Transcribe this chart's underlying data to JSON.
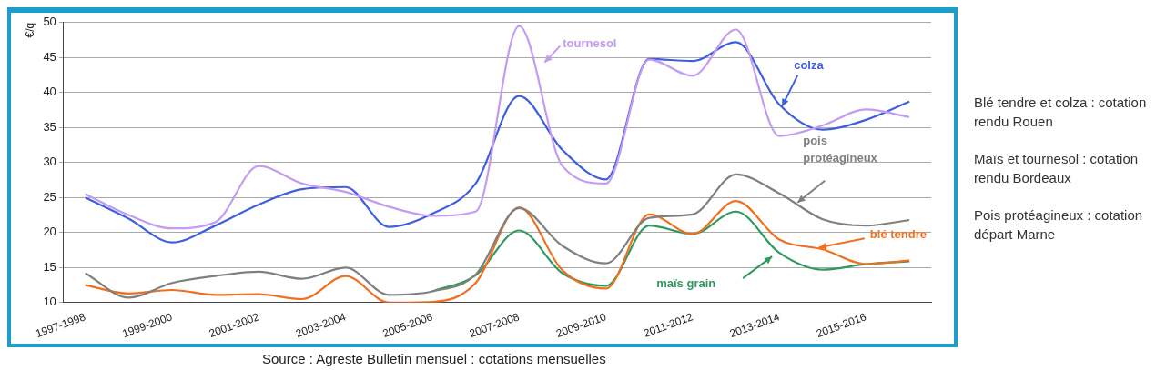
{
  "chart_data": {
    "type": "line",
    "ylabel": "€/q",
    "categories": [
      "1997-1998",
      null,
      "1999-2000",
      null,
      "2001-2002",
      null,
      "2003-2004",
      null,
      "2005-2006",
      null,
      "2007-2008",
      null,
      "2009-2010",
      null,
      "2011-2012",
      null,
      "2013-2014",
      null,
      "2015-2016",
      null
    ],
    "series": [
      {
        "name": "tournesol",
        "color": "#c39bf0",
        "values": [
          25.5,
          22.5,
          20.6,
          21.5,
          29.5,
          27,
          25.8,
          23.7,
          22.4,
          23,
          49.5,
          29.5,
          27,
          44.7,
          42.4,
          49,
          33.8,
          35.3,
          37.6,
          36.5
        ]
      },
      {
        "name": "colza",
        "color": "#3d5fe0",
        "values": [
          25,
          22,
          18.6,
          21,
          24,
          26.2,
          26.5,
          20.8,
          22.7,
          27,
          39.5,
          31.8,
          27.6,
          44.8,
          44.5,
          47.2,
          38.3,
          34.7,
          36.1,
          38.7
        ]
      },
      {
        "name": "pois protéagineux",
        "color": "#808080",
        "values": [
          14.2,
          10.7,
          12.8,
          13.8,
          14.4,
          13.4,
          15,
          11.1,
          11.6,
          14,
          23.5,
          18.1,
          15.6,
          22.1,
          22.6,
          28.3,
          25.6,
          21.9,
          21,
          21.8
        ]
      },
      {
        "name": "blé tendre",
        "color": "#f07020",
        "values": [
          12.5,
          11.3,
          11.8,
          11.1,
          11.2,
          10.5,
          13.8,
          10,
          10.1,
          12.8,
          23.6,
          14.6,
          12,
          22.6,
          19.8,
          24.5,
          19,
          17.6,
          15.5,
          16
        ]
      },
      {
        "name": "maïs grain",
        "color": "#2e9a60",
        "values": [
          null,
          null,
          null,
          null,
          null,
          null,
          null,
          null,
          11.6,
          13.9,
          20.3,
          14.2,
          12.4,
          21,
          19.8,
          23,
          17.1,
          14.7,
          15.5,
          15.9
        ]
      }
    ],
    "ylim": [
      10,
      50
    ],
    "yticks": [
      10,
      15,
      20,
      25,
      30,
      35,
      40,
      45,
      50
    ],
    "grid": "y",
    "legend": false,
    "marker": "none",
    "line_style": "solid",
    "annotations": [
      "Blé tendre et colza : cotation rendu Rouen",
      "Maïs et tournesol : cotation rendu Bordeaux",
      "Pois protéagineux : cotation départ Marne",
      "Source : Agreste  Bulletin mensuel : cotations mensuelles"
    ]
  }
}
